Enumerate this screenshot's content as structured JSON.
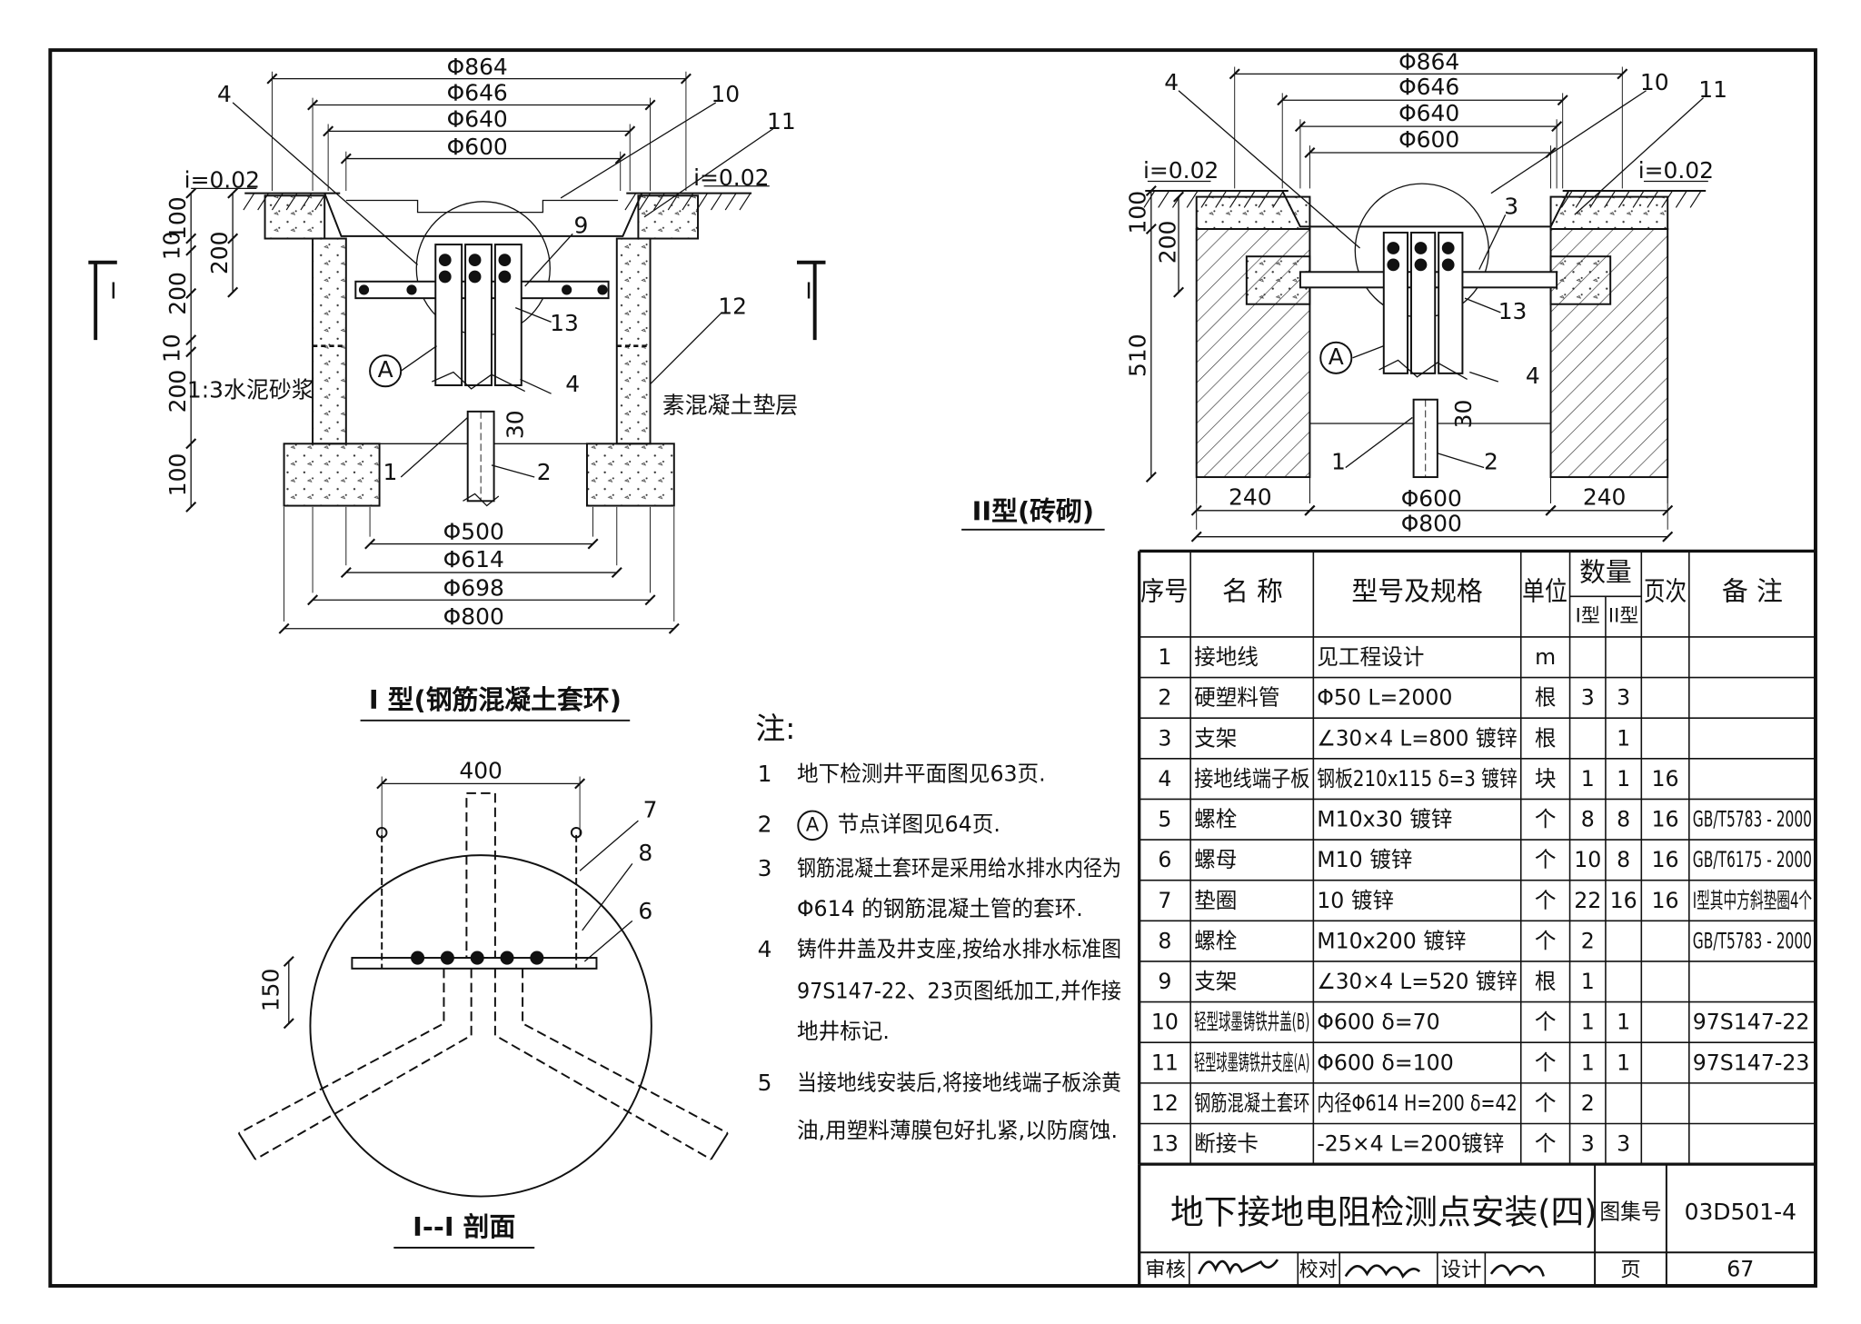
{
  "drawing_1": {
    "title": "I 型(钢筋混凝土套环)",
    "labels": [
      "Φ864",
      "Φ646",
      "Φ640",
      "Φ600",
      "4",
      "10",
      "11",
      "i=0.02",
      "i=0.02",
      "9",
      "13",
      "12",
      "4",
      "30",
      "1",
      "2",
      "1:3水泥砂浆",
      "素混凝土垫层",
      "100",
      "10",
      "200",
      "200",
      "10",
      "200",
      "100",
      "Φ500",
      "Φ614",
      "Φ698",
      "Φ800",
      "I",
      "I",
      "A"
    ]
  },
  "drawing_2": {
    "title": "II型(砖砌)",
    "labels": [
      "Φ864",
      "Φ646",
      "Φ640",
      "Φ600",
      "4",
      "10",
      "11",
      "i=0.02",
      "i=0.02",
      "3",
      "13",
      "4",
      "30",
      "1",
      "2",
      "100",
      "200",
      "510",
      "240",
      "240",
      "Φ600",
      "Φ800",
      "A"
    ]
  },
  "drawing_3": {
    "title": "I--I 剖面",
    "labels": [
      "400",
      "7",
      "8",
      "6",
      "150"
    ]
  },
  "notes": {
    "heading": "注:",
    "items": [
      {
        "number": "1",
        "lines": [
          "地下检测井平面图见63页."
        ]
      },
      {
        "number": "2",
        "symbol": "A",
        "lines": [
          "节点详图见64页."
        ]
      },
      {
        "number": "3",
        "lines": [
          "钢筋混凝土套环是采用给水排水内径为",
          "Φ614 的钢筋混凝土管的套环."
        ]
      },
      {
        "number": "4",
        "lines": [
          "铸件井盖及井支座,按给水排水标准图",
          "97S147-22、23页图纸加工,并作接",
          "地井标记."
        ]
      },
      {
        "number": "5",
        "lines": [
          "当接地线安装后,将接地线端子板涂黄",
          "油,用塑料薄膜包好扎紧,以防腐蚀."
        ]
      }
    ]
  },
  "table": {
    "header": [
      "序号",
      "名 称",
      "型号及规格",
      "单位",
      "数量",
      "I型",
      "II型",
      "页次",
      "备 注"
    ],
    "rows": [
      [
        "1",
        "接地线",
        "见工程设计",
        "m",
        null,
        null,
        null,
        null
      ],
      [
        "2",
        "硬塑料管",
        "Φ50 L=2000",
        "根",
        "3",
        "3",
        null,
        null
      ],
      [
        "3",
        "支架",
        "∠30×4 L=800 镀锌",
        "根",
        null,
        "1",
        null,
        null
      ],
      [
        "4",
        "接地线端子板",
        "钢板210x115 δ=3 镀锌",
        "块",
        "1",
        "1",
        "16",
        null
      ],
      [
        "5",
        "螺栓",
        "M10x30 镀锌",
        "个",
        "8",
        "8",
        "16",
        "GB/T5783 - 2000"
      ],
      [
        "6",
        "螺母",
        "M10 镀锌",
        "个",
        "10",
        "8",
        "16",
        "GB/T6175 - 2000"
      ],
      [
        "7",
        "垫圈",
        "10 镀锌",
        "个",
        "22",
        "16",
        "16",
        "I型其中方斜垫圈4个"
      ],
      [
        "8",
        "螺栓",
        "M10x200 镀锌",
        "个",
        "2",
        null,
        null,
        "GB/T5783 - 2000"
      ],
      [
        "9",
        "支架",
        "∠30×4 L=520 镀锌",
        "根",
        "1",
        null,
        null,
        null
      ],
      [
        "10",
        "轻型球墨铸铁井盖(B)",
        "Φ600 δ=70",
        "个",
        "1",
        "1",
        null,
        "97S147-22"
      ],
      [
        "11",
        "轻型球墨铸铁井支座(A)",
        "Φ600 δ=100",
        "个",
        "1",
        "1",
        null,
        "97S147-23"
      ],
      [
        "12",
        "钢筋混凝土套环",
        "内径Φ614 H=200 δ=42",
        "个",
        "2",
        null,
        null,
        null
      ],
      [
        "13",
        "断接卡",
        "-25×4 L=200镀锌",
        "个",
        "3",
        "3",
        null,
        null
      ]
    ]
  },
  "title_block": {
    "title": "地下接地电阻检测点安装(四)",
    "atlas_label": "图集号",
    "atlas_number": "03D501-4",
    "reviewed": "审核",
    "checked": "校对",
    "designed": "设计",
    "page_label": "页",
    "page": "67"
  }
}
